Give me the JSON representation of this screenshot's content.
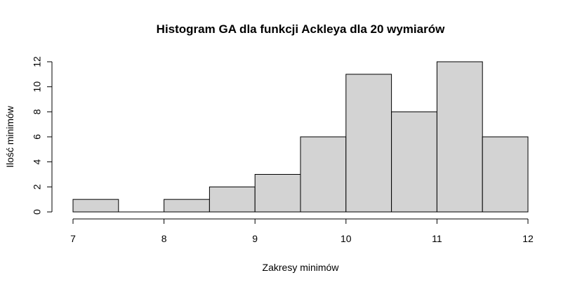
{
  "chart_data": {
    "type": "bar",
    "title": "Histogram GA dla funkcji Ackleya dla 20 wymiarów",
    "xlabel": "Zakresy minimów",
    "ylabel": "Ilość minimów",
    "bins": [
      {
        "from": 7.0,
        "to": 7.5,
        "count": 1
      },
      {
        "from": 7.5,
        "to": 8.0,
        "count": 0
      },
      {
        "from": 8.0,
        "to": 8.5,
        "count": 1
      },
      {
        "from": 8.5,
        "to": 9.0,
        "count": 2
      },
      {
        "from": 9.0,
        "to": 9.5,
        "count": 3
      },
      {
        "from": 9.5,
        "to": 10.0,
        "count": 6
      },
      {
        "from": 10.0,
        "to": 10.5,
        "count": 11
      },
      {
        "from": 10.5,
        "to": 11.0,
        "count": 8
      },
      {
        "from": 11.0,
        "to": 11.5,
        "count": 12
      },
      {
        "from": 11.5,
        "to": 12.0,
        "count": 6
      }
    ],
    "xlim": [
      7,
      12
    ],
    "ylim": [
      0,
      12
    ],
    "xticks": [
      "7",
      "8",
      "9",
      "10",
      "11",
      "12"
    ],
    "yticks": [
      "0",
      "2",
      "4",
      "6",
      "8",
      "10",
      "12"
    ],
    "bar_color": "#d3d3d3",
    "grid": false,
    "legend": "none"
  }
}
